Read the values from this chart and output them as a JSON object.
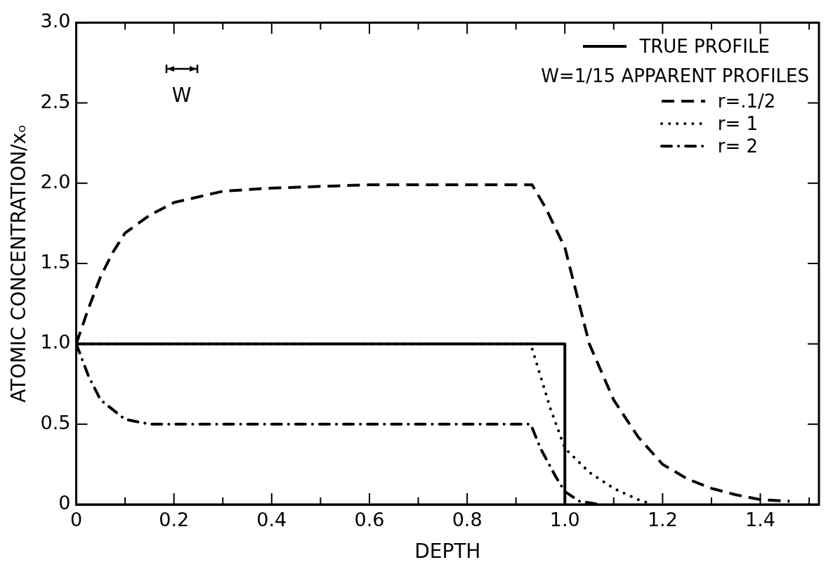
{
  "chart_data": {
    "type": "line",
    "xlabel": "DEPTH",
    "ylabel": "ATOMIC CONCENTRATION/xₒ",
    "legend": "top right",
    "legend_title": "W=1/15 APPARENT PROFILES",
    "marker": "none",
    "xlim": [
      0,
      1.52
    ],
    "ylim": [
      0,
      3.0
    ],
    "xticks": [
      0,
      {
        "value": 0.1,
        "label": null
      },
      0.2,
      {
        "value": 0.3,
        "label": null
      },
      0.4,
      {
        "value": 0.5,
        "label": null
      },
      0.6,
      {
        "value": 0.7,
        "label": null
      },
      0.8,
      {
        "value": 0.9,
        "label": null
      },
      {
        "value": 1.0,
        "label": "1.0"
      },
      {
        "value": 1.1,
        "label": null
      },
      1.2,
      {
        "value": 1.3,
        "label": null
      },
      1.4,
      {
        "value": 1.5,
        "label": null
      }
    ],
    "yticks": [
      0,
      0.5,
      {
        "value": 1.0,
        "label": "1.0"
      },
      1.5,
      {
        "value": 2.0,
        "label": "2.0"
      },
      2.5,
      {
        "value": 3.0,
        "label": "3.0"
      }
    ],
    "annotations": [
      "W"
    ],
    "series": [
      {
        "name": "TRUE PROFILE",
        "color": "#000000",
        "line_style": "solid",
        "x": [
          0,
          1.0,
          1.0
        ],
        "values": [
          1.0,
          1.0,
          0
        ]
      },
      {
        "name": "r=.1/2",
        "color": "#000000",
        "line_style": "dashed",
        "x": [
          0,
          0.025,
          0.05,
          0.075,
          0.1,
          0.15,
          0.2,
          0.3,
          0.4,
          0.5,
          0.6,
          0.7,
          0.8,
          0.933,
          0.96,
          1.0,
          1.05,
          1.1,
          1.15,
          1.2,
          1.25,
          1.3,
          1.35,
          1.4,
          1.46
        ],
        "values": [
          1.0,
          1.22,
          1.42,
          1.57,
          1.69,
          1.8,
          1.88,
          1.95,
          1.97,
          1.98,
          1.99,
          1.99,
          1.99,
          1.99,
          1.85,
          1.6,
          1.0,
          0.65,
          0.42,
          0.25,
          0.16,
          0.1,
          0.06,
          0.03,
          0.02
        ]
      },
      {
        "name": "r= 1",
        "color": "#000000",
        "line_style": "dotted",
        "x": [
          0,
          0.2,
          0.4,
          0.6,
          0.8,
          0.93,
          0.95,
          0.97,
          1.0,
          1.05,
          1.1,
          1.15,
          1.18
        ],
        "values": [
          1.0,
          1.0,
          1.0,
          1.0,
          1.0,
          1.0,
          0.8,
          0.6,
          0.35,
          0.2,
          0.1,
          0.03,
          0
        ]
      },
      {
        "name": "r= 2",
        "color": "#000000",
        "line_style": "dashdot",
        "x": [
          0,
          0.025,
          0.05,
          0.1,
          0.15,
          0.3,
          0.6,
          0.93,
          0.95,
          0.98,
          1.0,
          1.03,
          1.07
        ],
        "values": [
          1.0,
          0.8,
          0.65,
          0.53,
          0.5,
          0.5,
          0.5,
          0.5,
          0.35,
          0.18,
          0.08,
          0.02,
          0
        ]
      }
    ]
  }
}
